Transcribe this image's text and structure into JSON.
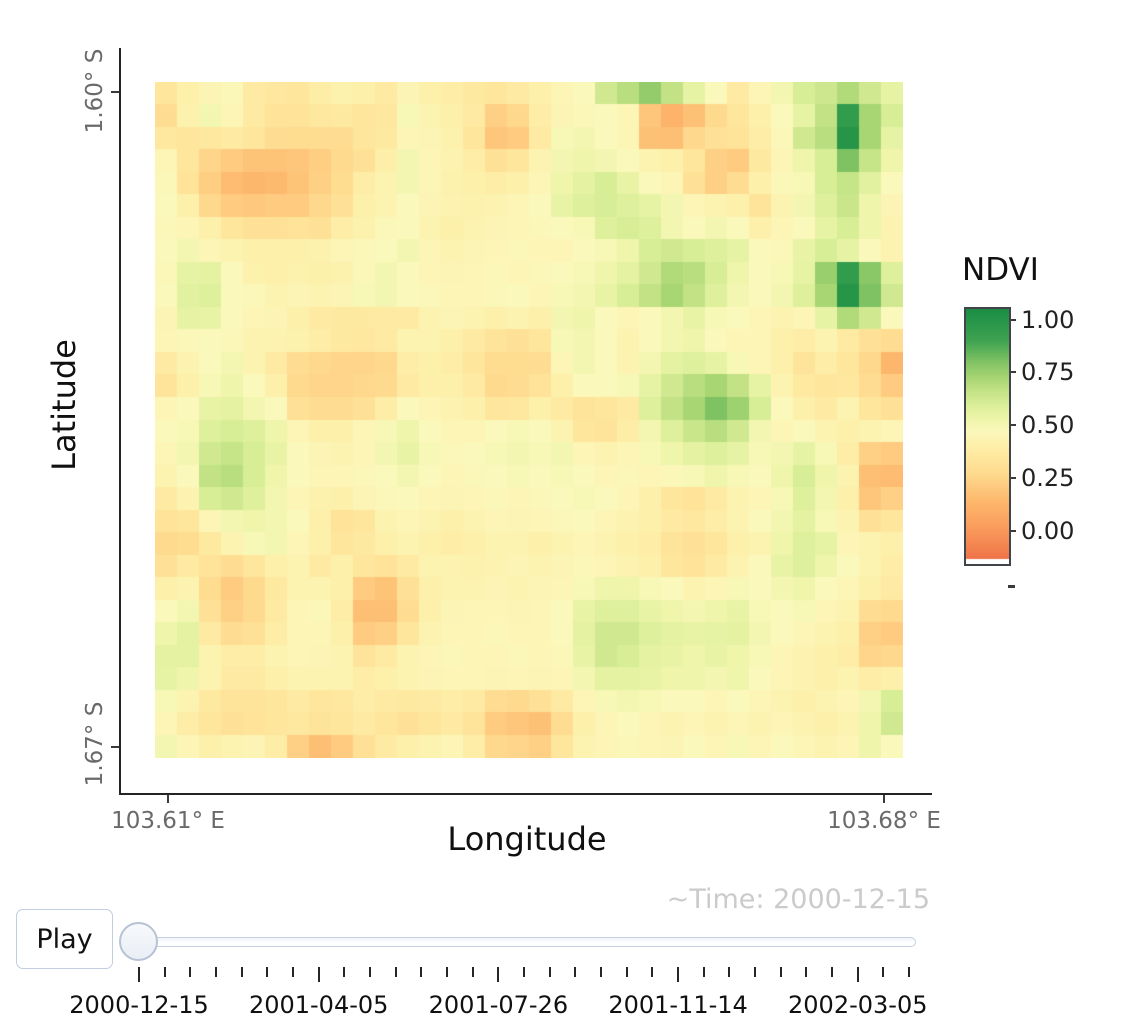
{
  "figure": {
    "y_axis": {
      "title": "Latitude",
      "tick_top": "1.60° S",
      "tick_bottom": "1.67° S"
    },
    "x_axis": {
      "title": "Longitude",
      "tick_left": "103.61° E",
      "tick_right": "103.68° E"
    },
    "colorbar": {
      "title": "NDVI",
      "tick_labels": [
        "1.00",
        "0.75",
        "0.50",
        "0.25",
        "0.00"
      ],
      "range_top": 1.05,
      "range_bottom": -0.155
    },
    "time_label": "~Time: 2000-12-15"
  },
  "controls": {
    "play_label": "Play",
    "current_value": "2000-12-15",
    "tick_labels": [
      "2000-12-15",
      "2001-04-05",
      "2001-07-26",
      "2001-11-14",
      "2002-03-05"
    ],
    "minor_tick_count": 31,
    "major_every": 7
  },
  "colors": {
    "accent_border": "#c2cddf",
    "axis_text": "#6a6a6a",
    "time_text": "#cbcbcb"
  },
  "chart_data": {
    "type": "heatmap",
    "colorbar_title": "NDVI",
    "xlabel": "Longitude",
    "ylabel": "Latitude",
    "x_range_labels": [
      "103.61° E",
      "103.68° E"
    ],
    "y_range_labels": [
      "1.60° S",
      "1.67° S"
    ],
    "colorbar_ticks": [
      1.0,
      0.75,
      0.5,
      0.25,
      0.0
    ],
    "zmin": -0.155,
    "zmax": 1.05,
    "grid": false,
    "colorscale": [
      [
        -0.16,
        "#ee7148"
      ],
      [
        0.0,
        "#fa9d5c"
      ],
      [
        0.12,
        "#fdb76c"
      ],
      [
        0.25,
        "#fed88c"
      ],
      [
        0.33,
        "#fee69c"
      ],
      [
        0.4,
        "#fdf0ab"
      ],
      [
        0.46,
        "#fbf8bc"
      ],
      [
        0.52,
        "#eff5ab"
      ],
      [
        0.58,
        "#def09c"
      ],
      [
        0.65,
        "#c6e488"
      ],
      [
        0.72,
        "#a8d673"
      ],
      [
        0.8,
        "#7fc263"
      ],
      [
        0.9,
        "#3ea351"
      ],
      [
        1.05,
        "#1b8e44"
      ]
    ],
    "values": [
      [
        0.33,
        0.4,
        0.43,
        0.45,
        0.36,
        0.34,
        0.33,
        0.38,
        0.41,
        0.4,
        0.36,
        0.43,
        0.4,
        0.38,
        0.35,
        0.33,
        0.36,
        0.4,
        0.44,
        0.46,
        0.62,
        0.68,
        0.76,
        0.66,
        0.55,
        0.46,
        0.36,
        0.44,
        0.5,
        0.6,
        0.63,
        0.7,
        0.62,
        0.55
      ],
      [
        0.28,
        0.41,
        0.5,
        0.44,
        0.36,
        0.31,
        0.31,
        0.34,
        0.35,
        0.33,
        0.34,
        0.48,
        0.42,
        0.4,
        0.36,
        0.22,
        0.25,
        0.38,
        0.43,
        0.45,
        0.46,
        0.44,
        0.18,
        0.1,
        0.16,
        0.26,
        0.33,
        0.4,
        0.46,
        0.55,
        0.66,
        0.95,
        0.72,
        0.6
      ],
      [
        0.34,
        0.33,
        0.34,
        0.36,
        0.33,
        0.28,
        0.27,
        0.28,
        0.28,
        0.33,
        0.35,
        0.44,
        0.43,
        0.41,
        0.33,
        0.18,
        0.2,
        0.36,
        0.48,
        0.5,
        0.46,
        0.44,
        0.16,
        0.15,
        0.25,
        0.3,
        0.31,
        0.38,
        0.45,
        0.62,
        0.68,
        1.0,
        0.72,
        0.55
      ],
      [
        0.44,
        0.33,
        0.24,
        0.2,
        0.17,
        0.17,
        0.18,
        0.21,
        0.26,
        0.3,
        0.39,
        0.5,
        0.44,
        0.42,
        0.38,
        0.3,
        0.33,
        0.42,
        0.5,
        0.52,
        0.5,
        0.46,
        0.42,
        0.4,
        0.33,
        0.22,
        0.2,
        0.35,
        0.44,
        0.52,
        0.6,
        0.8,
        0.65,
        0.52
      ],
      [
        0.45,
        0.31,
        0.21,
        0.14,
        0.12,
        0.13,
        0.17,
        0.22,
        0.27,
        0.38,
        0.42,
        0.5,
        0.44,
        0.41,
        0.4,
        0.38,
        0.4,
        0.44,
        0.52,
        0.56,
        0.6,
        0.54,
        0.46,
        0.44,
        0.3,
        0.22,
        0.28,
        0.4,
        0.45,
        0.48,
        0.6,
        0.65,
        0.57,
        0.46
      ],
      [
        0.46,
        0.4,
        0.25,
        0.2,
        0.19,
        0.2,
        0.2,
        0.25,
        0.3,
        0.4,
        0.42,
        0.46,
        0.43,
        0.42,
        0.41,
        0.42,
        0.44,
        0.46,
        0.54,
        0.58,
        0.6,
        0.58,
        0.55,
        0.5,
        0.44,
        0.42,
        0.4,
        0.32,
        0.42,
        0.5,
        0.58,
        0.64,
        0.52,
        0.43
      ],
      [
        0.45,
        0.44,
        0.4,
        0.33,
        0.3,
        0.3,
        0.31,
        0.3,
        0.38,
        0.41,
        0.45,
        0.46,
        0.42,
        0.4,
        0.42,
        0.43,
        0.44,
        0.45,
        0.46,
        0.48,
        0.58,
        0.6,
        0.58,
        0.5,
        0.46,
        0.5,
        0.46,
        0.4,
        0.44,
        0.46,
        0.55,
        0.6,
        0.52,
        0.42
      ],
      [
        0.46,
        0.5,
        0.44,
        0.42,
        0.4,
        0.4,
        0.4,
        0.41,
        0.44,
        0.45,
        0.46,
        0.5,
        0.44,
        0.42,
        0.43,
        0.44,
        0.45,
        0.44,
        0.44,
        0.46,
        0.48,
        0.52,
        0.6,
        0.62,
        0.6,
        0.58,
        0.55,
        0.46,
        0.45,
        0.54,
        0.6,
        0.55,
        0.46,
        0.42
      ],
      [
        0.45,
        0.55,
        0.56,
        0.46,
        0.41,
        0.4,
        0.41,
        0.4,
        0.41,
        0.45,
        0.5,
        0.46,
        0.44,
        0.43,
        0.44,
        0.45,
        0.44,
        0.45,
        0.46,
        0.48,
        0.52,
        0.56,
        0.62,
        0.7,
        0.68,
        0.6,
        0.52,
        0.46,
        0.48,
        0.55,
        0.75,
        0.95,
        0.78,
        0.58
      ],
      [
        0.46,
        0.57,
        0.58,
        0.46,
        0.45,
        0.42,
        0.43,
        0.42,
        0.43,
        0.48,
        0.5,
        0.46,
        0.45,
        0.44,
        0.44,
        0.45,
        0.46,
        0.44,
        0.48,
        0.5,
        0.54,
        0.6,
        0.66,
        0.72,
        0.66,
        0.58,
        0.5,
        0.46,
        0.5,
        0.58,
        0.72,
        1.0,
        0.8,
        0.62
      ],
      [
        0.43,
        0.55,
        0.54,
        0.46,
        0.44,
        0.43,
        0.4,
        0.36,
        0.35,
        0.35,
        0.36,
        0.36,
        0.42,
        0.43,
        0.42,
        0.4,
        0.42,
        0.4,
        0.5,
        0.52,
        0.46,
        0.44,
        0.46,
        0.5,
        0.54,
        0.48,
        0.46,
        0.44,
        0.42,
        0.44,
        0.55,
        0.7,
        0.62,
        0.46
      ],
      [
        0.44,
        0.45,
        0.46,
        0.45,
        0.42,
        0.42,
        0.41,
        0.38,
        0.35,
        0.34,
        0.36,
        0.42,
        0.42,
        0.4,
        0.36,
        0.32,
        0.3,
        0.33,
        0.48,
        0.5,
        0.46,
        0.42,
        0.46,
        0.5,
        0.52,
        0.46,
        0.44,
        0.44,
        0.4,
        0.38,
        0.42,
        0.36,
        0.3,
        0.28
      ],
      [
        0.36,
        0.42,
        0.46,
        0.5,
        0.42,
        0.36,
        0.28,
        0.25,
        0.24,
        0.24,
        0.25,
        0.38,
        0.4,
        0.38,
        0.33,
        0.27,
        0.27,
        0.28,
        0.44,
        0.5,
        0.46,
        0.42,
        0.5,
        0.56,
        0.58,
        0.55,
        0.48,
        0.44,
        0.4,
        0.32,
        0.38,
        0.33,
        0.25,
        0.12
      ],
      [
        0.32,
        0.4,
        0.48,
        0.52,
        0.46,
        0.4,
        0.26,
        0.24,
        0.24,
        0.25,
        0.26,
        0.36,
        0.4,
        0.4,
        0.36,
        0.26,
        0.28,
        0.31,
        0.4,
        0.46,
        0.46,
        0.48,
        0.55,
        0.62,
        0.68,
        0.72,
        0.66,
        0.55,
        0.42,
        0.35,
        0.33,
        0.34,
        0.28,
        0.2
      ],
      [
        0.44,
        0.46,
        0.54,
        0.56,
        0.5,
        0.46,
        0.3,
        0.28,
        0.28,
        0.3,
        0.38,
        0.46,
        0.44,
        0.42,
        0.4,
        0.33,
        0.34,
        0.4,
        0.36,
        0.32,
        0.33,
        0.36,
        0.58,
        0.66,
        0.72,
        0.8,
        0.74,
        0.6,
        0.46,
        0.4,
        0.36,
        0.42,
        0.33,
        0.3
      ],
      [
        0.46,
        0.48,
        0.58,
        0.6,
        0.58,
        0.52,
        0.44,
        0.4,
        0.4,
        0.44,
        0.48,
        0.52,
        0.46,
        0.44,
        0.44,
        0.46,
        0.48,
        0.46,
        0.42,
        0.33,
        0.32,
        0.38,
        0.5,
        0.58,
        0.64,
        0.68,
        0.62,
        0.5,
        0.44,
        0.46,
        0.42,
        0.4,
        0.42,
        0.44
      ],
      [
        0.44,
        0.5,
        0.62,
        0.65,
        0.6,
        0.54,
        0.46,
        0.43,
        0.42,
        0.44,
        0.5,
        0.54,
        0.48,
        0.45,
        0.46,
        0.48,
        0.5,
        0.48,
        0.5,
        0.44,
        0.42,
        0.44,
        0.48,
        0.52,
        0.56,
        0.58,
        0.55,
        0.48,
        0.5,
        0.55,
        0.48,
        0.38,
        0.22,
        0.2
      ],
      [
        0.42,
        0.46,
        0.66,
        0.68,
        0.6,
        0.52,
        0.46,
        0.44,
        0.44,
        0.45,
        0.46,
        0.5,
        0.46,
        0.44,
        0.45,
        0.46,
        0.48,
        0.46,
        0.48,
        0.46,
        0.44,
        0.45,
        0.44,
        0.45,
        0.48,
        0.52,
        0.48,
        0.46,
        0.52,
        0.6,
        0.52,
        0.42,
        0.15,
        0.14
      ],
      [
        0.36,
        0.42,
        0.6,
        0.62,
        0.58,
        0.5,
        0.44,
        0.41,
        0.4,
        0.43,
        0.45,
        0.46,
        0.44,
        0.43,
        0.44,
        0.45,
        0.44,
        0.45,
        0.46,
        0.48,
        0.46,
        0.44,
        0.4,
        0.33,
        0.31,
        0.36,
        0.42,
        0.44,
        0.48,
        0.58,
        0.5,
        0.4,
        0.18,
        0.22
      ],
      [
        0.31,
        0.33,
        0.44,
        0.5,
        0.52,
        0.5,
        0.46,
        0.4,
        0.31,
        0.33,
        0.42,
        0.44,
        0.42,
        0.4,
        0.42,
        0.44,
        0.43,
        0.44,
        0.45,
        0.46,
        0.44,
        0.42,
        0.4,
        0.36,
        0.34,
        0.38,
        0.42,
        0.46,
        0.5,
        0.56,
        0.48,
        0.42,
        0.3,
        0.33
      ],
      [
        0.26,
        0.27,
        0.35,
        0.42,
        0.48,
        0.5,
        0.44,
        0.4,
        0.33,
        0.35,
        0.4,
        0.42,
        0.4,
        0.38,
        0.4,
        0.42,
        0.42,
        0.4,
        0.42,
        0.44,
        0.42,
        0.4,
        0.38,
        0.32,
        0.3,
        0.33,
        0.4,
        0.42,
        0.52,
        0.58,
        0.55,
        0.44,
        0.42,
        0.4
      ],
      [
        0.3,
        0.36,
        0.31,
        0.28,
        0.33,
        0.4,
        0.42,
        0.36,
        0.4,
        0.33,
        0.31,
        0.36,
        0.42,
        0.42,
        0.41,
        0.42,
        0.43,
        0.42,
        0.43,
        0.45,
        0.44,
        0.42,
        0.4,
        0.33,
        0.31,
        0.36,
        0.42,
        0.46,
        0.54,
        0.58,
        0.52,
        0.46,
        0.42,
        0.38
      ],
      [
        0.4,
        0.42,
        0.27,
        0.2,
        0.26,
        0.35,
        0.42,
        0.42,
        0.4,
        0.2,
        0.17,
        0.3,
        0.4,
        0.42,
        0.42,
        0.43,
        0.42,
        0.43,
        0.44,
        0.48,
        0.52,
        0.52,
        0.48,
        0.46,
        0.42,
        0.44,
        0.48,
        0.46,
        0.5,
        0.52,
        0.46,
        0.44,
        0.4,
        0.36
      ],
      [
        0.46,
        0.5,
        0.3,
        0.22,
        0.26,
        0.36,
        0.44,
        0.45,
        0.38,
        0.15,
        0.15,
        0.28,
        0.4,
        0.43,
        0.44,
        0.44,
        0.43,
        0.44,
        0.46,
        0.54,
        0.58,
        0.58,
        0.54,
        0.52,
        0.5,
        0.52,
        0.54,
        0.48,
        0.46,
        0.48,
        0.44,
        0.42,
        0.28,
        0.26
      ],
      [
        0.52,
        0.56,
        0.36,
        0.28,
        0.3,
        0.38,
        0.44,
        0.44,
        0.4,
        0.2,
        0.22,
        0.33,
        0.42,
        0.44,
        0.44,
        0.45,
        0.44,
        0.44,
        0.46,
        0.56,
        0.62,
        0.62,
        0.58,
        0.56,
        0.54,
        0.55,
        0.56,
        0.5,
        0.46,
        0.44,
        0.42,
        0.4,
        0.22,
        0.2
      ],
      [
        0.56,
        0.56,
        0.42,
        0.38,
        0.38,
        0.42,
        0.44,
        0.43,
        0.42,
        0.32,
        0.36,
        0.42,
        0.44,
        0.45,
        0.44,
        0.44,
        0.45,
        0.44,
        0.45,
        0.54,
        0.62,
        0.6,
        0.56,
        0.54,
        0.52,
        0.54,
        0.52,
        0.48,
        0.44,
        0.42,
        0.4,
        0.38,
        0.24,
        0.25
      ],
      [
        0.55,
        0.52,
        0.42,
        0.36,
        0.36,
        0.4,
        0.42,
        0.42,
        0.42,
        0.38,
        0.4,
        0.42,
        0.43,
        0.44,
        0.44,
        0.43,
        0.44,
        0.43,
        0.44,
        0.5,
        0.56,
        0.56,
        0.54,
        0.52,
        0.52,
        0.5,
        0.52,
        0.46,
        0.44,
        0.42,
        0.4,
        0.42,
        0.38,
        0.4
      ],
      [
        0.48,
        0.42,
        0.35,
        0.32,
        0.32,
        0.33,
        0.36,
        0.33,
        0.34,
        0.38,
        0.36,
        0.35,
        0.36,
        0.38,
        0.36,
        0.28,
        0.26,
        0.3,
        0.36,
        0.44,
        0.48,
        0.5,
        0.48,
        0.46,
        0.46,
        0.44,
        0.46,
        0.44,
        0.42,
        0.4,
        0.42,
        0.44,
        0.5,
        0.6
      ],
      [
        0.44,
        0.38,
        0.33,
        0.3,
        0.31,
        0.33,
        0.34,
        0.32,
        0.33,
        0.36,
        0.33,
        0.3,
        0.33,
        0.36,
        0.32,
        0.2,
        0.18,
        0.16,
        0.28,
        0.4,
        0.44,
        0.46,
        0.44,
        0.42,
        0.44,
        0.42,
        0.44,
        0.42,
        0.44,
        0.42,
        0.4,
        0.42,
        0.52,
        0.62
      ],
      [
        0.5,
        0.44,
        0.4,
        0.42,
        0.43,
        0.38,
        0.22,
        0.15,
        0.2,
        0.3,
        0.36,
        0.4,
        0.42,
        0.44,
        0.38,
        0.25,
        0.24,
        0.22,
        0.33,
        0.42,
        0.44,
        0.45,
        0.44,
        0.43,
        0.46,
        0.44,
        0.48,
        0.44,
        0.46,
        0.44,
        0.42,
        0.44,
        0.52,
        0.46
      ]
    ]
  }
}
